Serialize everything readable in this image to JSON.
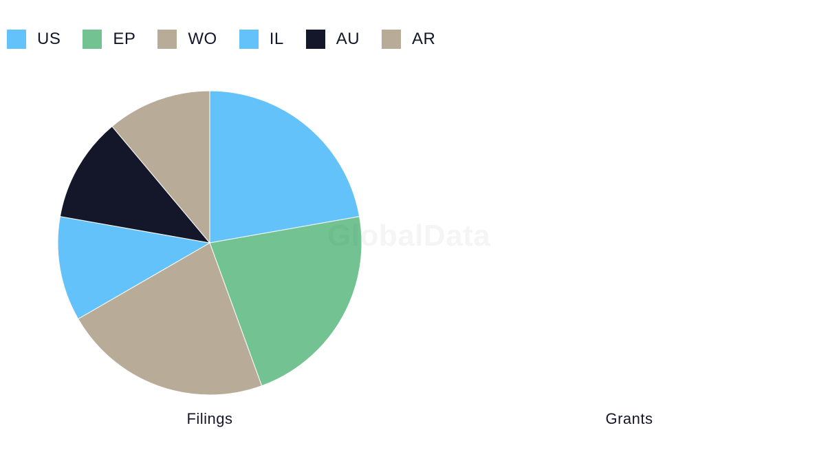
{
  "watermark": "GlobalData",
  "colors": {
    "US": "#64c2fa",
    "EP": "#73c392",
    "WO": "#b8ab98",
    "IL": "#64c2fa",
    "AU": "#141629",
    "AR": "#b8ab98"
  },
  "legend": [
    {
      "label": "US",
      "color": "#64c2fa"
    },
    {
      "label": "EP",
      "color": "#73c392"
    },
    {
      "label": "WO",
      "color": "#b8ab98"
    },
    {
      "label": "IL",
      "color": "#64c2fa"
    },
    {
      "label": "AU",
      "color": "#141629"
    },
    {
      "label": "AR",
      "color": "#b8ab98"
    }
  ],
  "chart_data": [
    {
      "type": "pie",
      "title": "Filings",
      "legend_position": "top-left",
      "slices": [
        {
          "label": "US",
          "value": 2,
          "color": "#64c2fa"
        },
        {
          "label": "EP",
          "value": 2,
          "color": "#73c392"
        },
        {
          "label": "WO",
          "value": 2,
          "color": "#b8ab98"
        },
        {
          "label": "IL",
          "value": 1,
          "color": "#64c2fa"
        },
        {
          "label": "AU",
          "value": 1,
          "color": "#141629"
        },
        {
          "label": "AR",
          "value": 1,
          "color": "#b8ab98"
        }
      ]
    },
    {
      "type": "pie",
      "title": "Grants",
      "slices": []
    }
  ]
}
